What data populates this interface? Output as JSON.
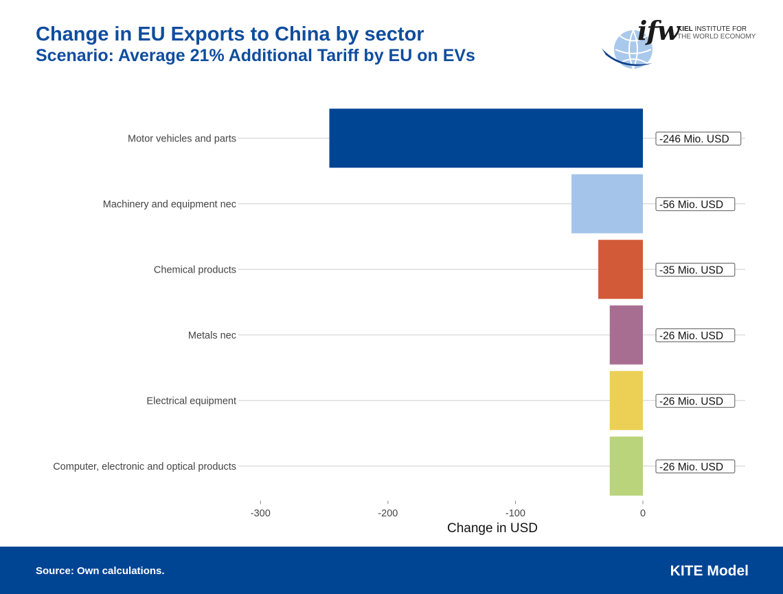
{
  "header": {
    "title": "Change in EU Exports to China by sector",
    "subtitle": "Scenario: Average 21% Additional Tariff by EU on EVs"
  },
  "logo": {
    "wordmark": "ifw",
    "line1_bold": "KIEL",
    "line1_rest": " INSTITUTE FOR",
    "line2": "THE WORLD ECONOMY"
  },
  "chart_data": {
    "type": "bar",
    "orientation": "horizontal",
    "title": "Change in EU Exports to China by sector",
    "subtitle": "Scenario: Average 21% Additional Tariff by EU on EVs",
    "xlabel": "Change in USD",
    "ylabel": "",
    "xlim": [
      -310,
      0
    ],
    "xticks": [
      -300,
      -200,
      -100,
      0
    ],
    "xtick_labels": [
      "-300",
      "-200",
      "-100",
      "0"
    ],
    "grid": true,
    "categories": [
      "Motor vehicles and parts",
      "Machinery and equipment nec",
      "Chemical products",
      "Metals nec",
      "Electrical equipment",
      "Computer, electronic and optical products"
    ],
    "values": [
      -246,
      -56,
      -35,
      -26,
      -26,
      -26
    ],
    "data_labels": [
      "-246 Mio. USD",
      "-56 Mio. USD",
      "-35 Mio. USD",
      "-26 Mio. USD",
      "-26 Mio. USD",
      "-26 Mio. USD"
    ],
    "colors": [
      "#004494",
      "#a4c4ea",
      "#d35a38",
      "#a86e91",
      "#ecd055",
      "#b9d47a"
    ]
  },
  "footer": {
    "source": "Source: Own calculations.",
    "model": "KITE Model",
    "background": "#004494"
  }
}
